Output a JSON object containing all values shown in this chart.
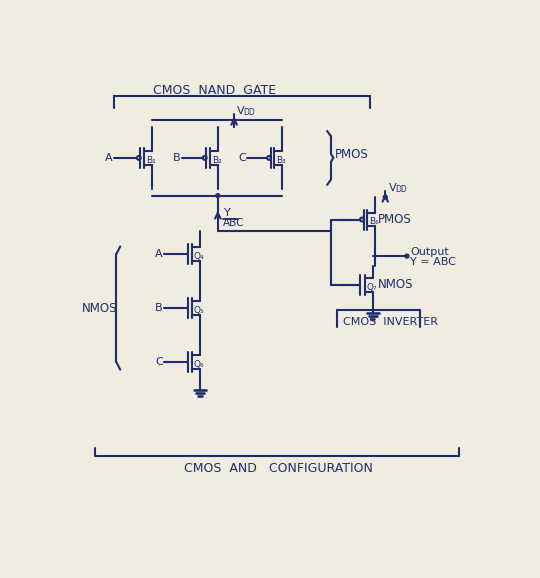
{
  "bg_color": "#f0ece0",
  "ink_color": "#1e2d6e",
  "title_nand": "CMOS  NAND  GATE",
  "title_and": "CMOS  AND   CONFIGURATION",
  "label_pmos_top": "PMOS",
  "label_nmos_left": "NMOS",
  "label_inverter": "CMOS  INVERTER",
  "label_pmos_inv": "PMOS",
  "label_nmos_inv": "NMOS",
  "label_output": "Output",
  "label_y_abc": "Y = ABC",
  "label_Q1": "B₁",
  "label_Q2": "B₂",
  "label_Q3": "B₃",
  "label_Q4": "Q₄",
  "label_Q5": "Q₅",
  "label_Q6": "Q₆",
  "label_Q6b": "B₆",
  "label_Q7": "Q₇"
}
